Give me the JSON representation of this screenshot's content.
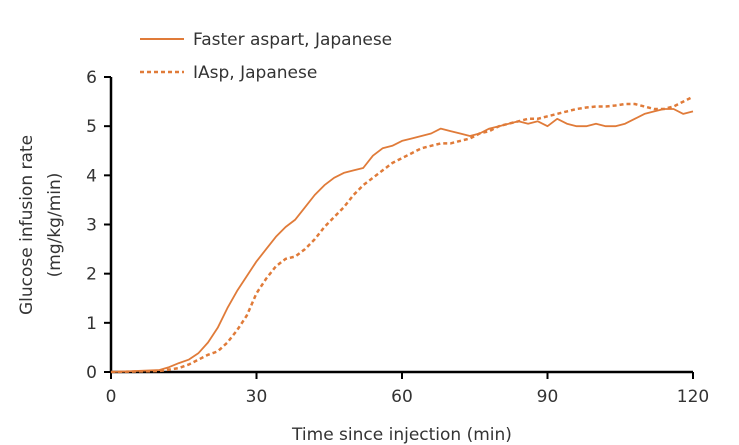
{
  "chart_data": {
    "type": "line",
    "xlabel": "Time since injection (min)",
    "ylabel": "Glucose infusion rate",
    "ylabel_unit": "(mg/kg/min)",
    "xlim": [
      0,
      120
    ],
    "ylim": [
      0,
      6
    ],
    "xticks": [
      0,
      30,
      60,
      90,
      120
    ],
    "yticks": [
      0,
      1,
      2,
      3,
      4,
      5,
      6
    ],
    "grid": false,
    "legend_position": "top-left",
    "series": [
      {
        "name": "Faster aspart, Japanese",
        "style": "solid",
        "color": "#e07b39",
        "x": [
          0,
          5,
          10,
          12,
          14,
          16,
          18,
          20,
          22,
          24,
          26,
          28,
          30,
          32,
          34,
          36,
          38,
          40,
          42,
          44,
          46,
          48,
          50,
          52,
          54,
          56,
          58,
          60,
          62,
          64,
          66,
          68,
          70,
          72,
          74,
          76,
          78,
          80,
          82,
          84,
          86,
          88,
          90,
          92,
          94,
          96,
          98,
          100,
          102,
          104,
          106,
          108,
          110,
          112,
          114,
          116,
          118,
          120
        ],
        "y": [
          0,
          0.02,
          0.04,
          0.1,
          0.18,
          0.25,
          0.38,
          0.6,
          0.9,
          1.3,
          1.65,
          1.95,
          2.25,
          2.5,
          2.75,
          2.95,
          3.1,
          3.35,
          3.6,
          3.8,
          3.95,
          4.05,
          4.1,
          4.15,
          4.4,
          4.55,
          4.6,
          4.7,
          4.75,
          4.8,
          4.85,
          4.95,
          4.9,
          4.85,
          4.8,
          4.85,
          4.95,
          5.0,
          5.05,
          5.1,
          5.05,
          5.1,
          5.0,
          5.15,
          5.05,
          5.0,
          5.0,
          5.05,
          5.0,
          5.0,
          5.05,
          5.15,
          5.25,
          5.3,
          5.35,
          5.35,
          5.25,
          5.3
        ]
      },
      {
        "name": "IAsp, Japanese",
        "style": "dashed",
        "color": "#e07b39",
        "x": [
          0,
          5,
          10,
          14,
          16,
          18,
          20,
          22,
          24,
          26,
          28,
          30,
          32,
          34,
          36,
          38,
          40,
          42,
          44,
          46,
          48,
          50,
          52,
          54,
          56,
          58,
          60,
          62,
          64,
          66,
          68,
          70,
          72,
          74,
          76,
          78,
          80,
          82,
          84,
          86,
          88,
          90,
          92,
          94,
          96,
          98,
          100,
          102,
          104,
          106,
          108,
          110,
          112,
          114,
          116,
          118,
          120
        ],
        "y": [
          0,
          0.01,
          0.02,
          0.08,
          0.15,
          0.25,
          0.35,
          0.42,
          0.6,
          0.85,
          1.15,
          1.6,
          1.9,
          2.15,
          2.3,
          2.35,
          2.5,
          2.7,
          2.95,
          3.15,
          3.35,
          3.6,
          3.8,
          3.95,
          4.1,
          4.25,
          4.35,
          4.45,
          4.55,
          4.6,
          4.65,
          4.65,
          4.7,
          4.75,
          4.85,
          4.9,
          5.0,
          5.05,
          5.1,
          5.15,
          5.15,
          5.2,
          5.25,
          5.3,
          5.35,
          5.38,
          5.4,
          5.4,
          5.42,
          5.45,
          5.45,
          5.4,
          5.35,
          5.35,
          5.4,
          5.5,
          5.6
        ]
      }
    ]
  }
}
